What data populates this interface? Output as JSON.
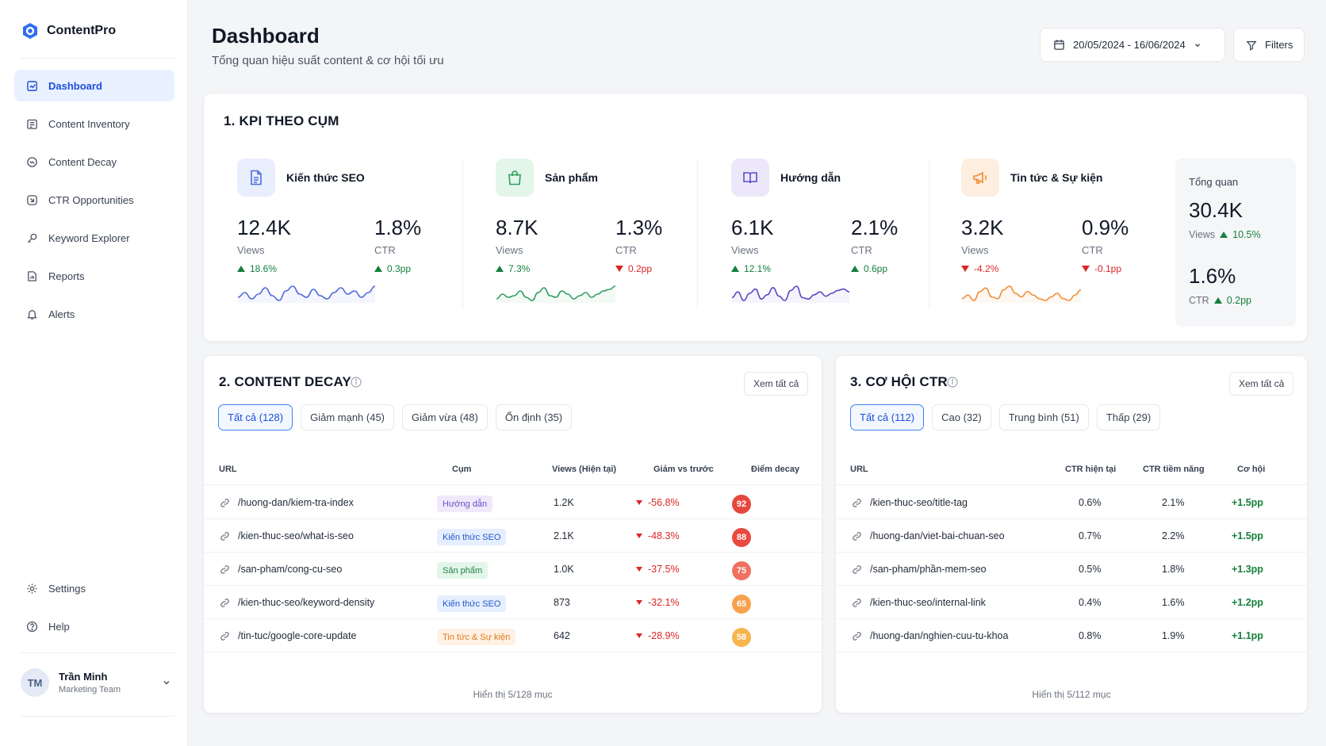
{
  "app": {
    "name": "ContentPro"
  },
  "sidebar": {
    "items": [
      {
        "label": "Dashboard",
        "icon": "dashboard-icon",
        "active": true
      },
      {
        "label": "Content Inventory",
        "icon": "inventory-icon"
      },
      {
        "label": "Content Decay",
        "icon": "decay-icon"
      },
      {
        "label": "CTR Opportunities",
        "icon": "ctr-icon"
      },
      {
        "label": "Keyword Explorer",
        "icon": "keyword-icon"
      },
      {
        "label": "Reports",
        "icon": "reports-icon"
      },
      {
        "label": "Alerts",
        "icon": "bell-icon"
      }
    ],
    "bottom": [
      {
        "label": "Settings",
        "icon": "gear-icon"
      },
      {
        "label": "Help",
        "icon": "help-icon"
      }
    ],
    "user": {
      "initials": "TM",
      "name": "Trần Minh",
      "team": "Marketing Team"
    }
  },
  "header": {
    "title": "Dashboard",
    "subtitle": "Tổng quan hiệu suất content & cơ hội tối ưu",
    "date_range": "20/05/2024 - 16/06/2024",
    "filters_label": "Filters"
  },
  "kpi": {
    "title": "1. KPI THEO CỤM",
    "clusters": [
      {
        "name": "Kiến thức SEO",
        "views": "12.4K",
        "views_label": "Views",
        "views_delta": "18.6%",
        "views_dir": "up",
        "ctr": "1.8%",
        "ctr_label": "CTR",
        "ctr_delta": "0.3pp",
        "ctr_dir": "up",
        "color": "#4f6bdc",
        "spark": [
          8,
          11,
          7,
          10,
          14,
          9,
          6,
          12,
          15,
          10,
          8,
          13,
          9,
          7,
          11,
          14,
          10,
          12,
          8,
          11,
          15
        ]
      },
      {
        "name": "Sản phẩm",
        "views": "8.7K",
        "views_label": "Views",
        "views_delta": "7.3%",
        "views_dir": "up",
        "ctr": "1.3%",
        "ctr_label": "CTR",
        "ctr_delta": "0.2pp",
        "ctr_dir": "down",
        "color": "#2f9e5c",
        "spark": [
          7,
          10,
          8,
          9,
          12,
          8,
          6,
          11,
          14,
          9,
          8,
          12,
          10,
          7,
          9,
          11,
          8,
          10,
          12,
          13,
          15
        ]
      },
      {
        "name": "Hướng dẫn",
        "views": "6.1K",
        "views_label": "Views",
        "views_delta": "12.1%",
        "views_dir": "up",
        "ctr": "2.1%",
        "ctr_label": "CTR",
        "ctr_delta": "0.6pp",
        "ctr_dir": "up",
        "color": "#5b4bc4",
        "spark": [
          8,
          12,
          6,
          11,
          14,
          7,
          10,
          15,
          9,
          6,
          13,
          16,
          8,
          7,
          10,
          12,
          9,
          11,
          13,
          14,
          12
        ]
      },
      {
        "name": "Tin tức & Sự kiện",
        "views": "3.2K",
        "views_label": "Views",
        "views_delta": "-4.2%",
        "views_dir": "down",
        "ctr": "0.9%",
        "ctr_label": "CTR",
        "ctr_delta": "-0.1pp",
        "ctr_dir": "down",
        "color": "#f28b30",
        "spark": [
          9,
          11,
          8,
          13,
          15,
          10,
          9,
          14,
          16,
          12,
          10,
          13,
          11,
          9,
          8,
          10,
          12,
          9,
          8,
          11,
          14
        ]
      }
    ],
    "total": {
      "title": "Tổng quan",
      "views": "30.4K",
      "views_label": "Views",
      "views_delta": "10.5%",
      "ctr": "1.6%",
      "ctr_label": "CTR",
      "ctr_delta": "0.2pp"
    }
  },
  "decay": {
    "title": "2. CONTENT DECAY",
    "see_all": "Xem tất cả",
    "chips": [
      "Tất cả (128)",
      "Giảm mạnh (45)",
      "Giảm vừa (48)",
      "Ổn định (35)"
    ],
    "columns": [
      "URL",
      "Cụm",
      "Views (Hiện tại)",
      "Giảm vs trước",
      "Điểm decay"
    ],
    "rows": [
      {
        "url": "/huong-dan/kiem-tra-index",
        "cluster": "Hướng dẫn",
        "tag_bg": "#efe9fb",
        "tag_fg": "#6d4fc4",
        "views": "1.2K",
        "drop": "-56.8%",
        "score": "92",
        "score_color": "#e5483d"
      },
      {
        "url": "/kien-thuc-seo/what-is-seo",
        "cluster": "Kiến thức SEO",
        "tag_bg": "#e6efff",
        "tag_fg": "#2456c9",
        "views": "2.1K",
        "drop": "-48.3%",
        "score": "88",
        "score_color": "#e84a3f"
      },
      {
        "url": "/san-pham/cong-cu-seo",
        "cluster": "Sản phẩm",
        "tag_bg": "#e4f5ea",
        "tag_fg": "#23844a",
        "views": "1.0K",
        "drop": "-37.5%",
        "score": "75",
        "score_color": "#f07162"
      },
      {
        "url": "/kien-thuc-seo/keyword-density",
        "cluster": "Kiến thức SEO",
        "tag_bg": "#e6efff",
        "tag_fg": "#2456c9",
        "views": "873",
        "drop": "-32.1%",
        "score": "65",
        "score_color": "#f6a24c"
      },
      {
        "url": "/tin-tuc/google-core-update",
        "cluster": "Tin tức & Sự kiện",
        "tag_bg": "#fff1e3",
        "tag_fg": "#e07b1f",
        "views": "642",
        "drop": "-28.9%",
        "score": "58",
        "score_color": "#f7b44f"
      }
    ],
    "footer": "Hiển thị 5/128 mục"
  },
  "ctr": {
    "title": "3. CƠ HỘI CTR",
    "see_all": "Xem tất cả",
    "chips": [
      "Tất cả (112)",
      "Cao (32)",
      "Trung bình (51)",
      "Thấp (29)"
    ],
    "columns": [
      "URL",
      "CTR hiện tại",
      "CTR tiềm năng",
      "Cơ hội"
    ],
    "rows": [
      {
        "url": "/kien-thuc-seo/title-tag",
        "current": "0.6%",
        "potential": "2.1%",
        "gain": "+1.5pp"
      },
      {
        "url": "/huong-dan/viet-bai-chuan-seo",
        "current": "0.7%",
        "potential": "2.2%",
        "gain": "+1.5pp"
      },
      {
        "url": "/san-pham/phần-mem-seo",
        "current": "0.5%",
        "potential": "1.8%",
        "gain": "+1.3pp"
      },
      {
        "url": "/kien-thuc-seo/internal-link",
        "current": "0.4%",
        "potential": "1.6%",
        "gain": "+1.2pp"
      },
      {
        "url": "/huong-dan/nghien-cuu-tu-khoa",
        "current": "0.8%",
        "potential": "1.9%",
        "gain": "+1.1pp"
      }
    ],
    "footer": "Hiển thị 5/112 mục"
  },
  "colors": {
    "accent": "#2563eb",
    "up": "#15803d",
    "down": "#dc2626"
  }
}
